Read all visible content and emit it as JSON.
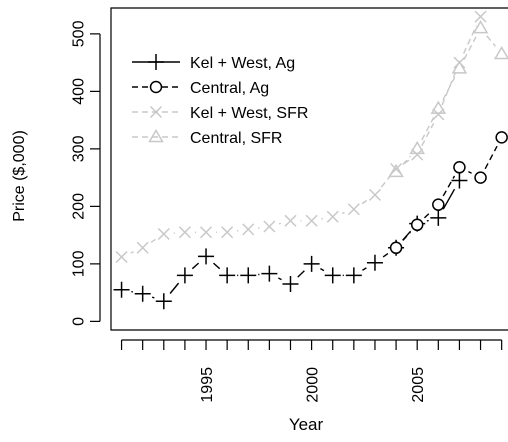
{
  "chart_data": {
    "type": "line",
    "title": "",
    "xlabel": "Year",
    "ylabel": "Price ($,000)",
    "xlim": [
      1990.5,
      2009.3
    ],
    "ylim": [
      -15,
      545
    ],
    "x_ticks": [
      1991,
      1992,
      1993,
      1994,
      1995,
      1996,
      1997,
      1998,
      1999,
      2000,
      2001,
      2002,
      2003,
      2004,
      2005,
      2006,
      2007,
      2008,
      2009
    ],
    "x_tick_labels": [
      {
        "value": 1995,
        "label": "1995"
      },
      {
        "value": 2000,
        "label": "2000"
      },
      {
        "value": 2005,
        "label": "2005"
      }
    ],
    "y_ticks": [
      {
        "value": 0,
        "label": "0"
      },
      {
        "value": 100,
        "label": "100"
      },
      {
        "value": 200,
        "label": "200"
      },
      {
        "value": 300,
        "label": "300"
      },
      {
        "value": 400,
        "label": "400"
      },
      {
        "value": 500,
        "label": "500"
      }
    ],
    "grid": false,
    "legend_position": "top-left",
    "series": [
      {
        "name": "Kel + West, Ag",
        "marker": "plus",
        "line": "solid",
        "color": "#000000",
        "x": [
          1991,
          1992,
          1993,
          1994,
          1995,
          1996,
          1997,
          1998,
          1999,
          2000,
          2001,
          2002,
          2003,
          2004,
          2005,
          2006,
          2007
        ],
        "y": [
          55,
          48,
          35,
          80,
          113,
          80,
          80,
          83,
          65,
          100,
          80,
          80,
          102,
          128,
          170,
          180,
          245
        ]
      },
      {
        "name": "Central, Ag",
        "marker": "circle",
        "line": "dashed",
        "color": "#000000",
        "x": [
          2004,
          2005,
          2006,
          2007,
          2008,
          2009
        ],
        "y": [
          128,
          168,
          203,
          268,
          250,
          320
        ]
      },
      {
        "name": "Kel + West, SFR",
        "marker": "cross",
        "line": "dashed",
        "color": "#c8c8c8",
        "x": [
          1991,
          1992,
          1993,
          1994,
          1995,
          1996,
          1997,
          1998,
          1999,
          2000,
          2001,
          2002,
          2003,
          2004,
          2005,
          2006,
          2007,
          2008
        ],
        "y": [
          112,
          128,
          152,
          155,
          155,
          155,
          160,
          165,
          175,
          175,
          182,
          195,
          220,
          265,
          290,
          360,
          450,
          530
        ]
      },
      {
        "name": "Central, SFR",
        "marker": "triangle",
        "line": "dashed",
        "color": "#c8c8c8",
        "x": [
          2004,
          2005,
          2006,
          2007,
          2008,
          2009
        ],
        "y": [
          260,
          300,
          370,
          440,
          510,
          465
        ]
      }
    ]
  }
}
